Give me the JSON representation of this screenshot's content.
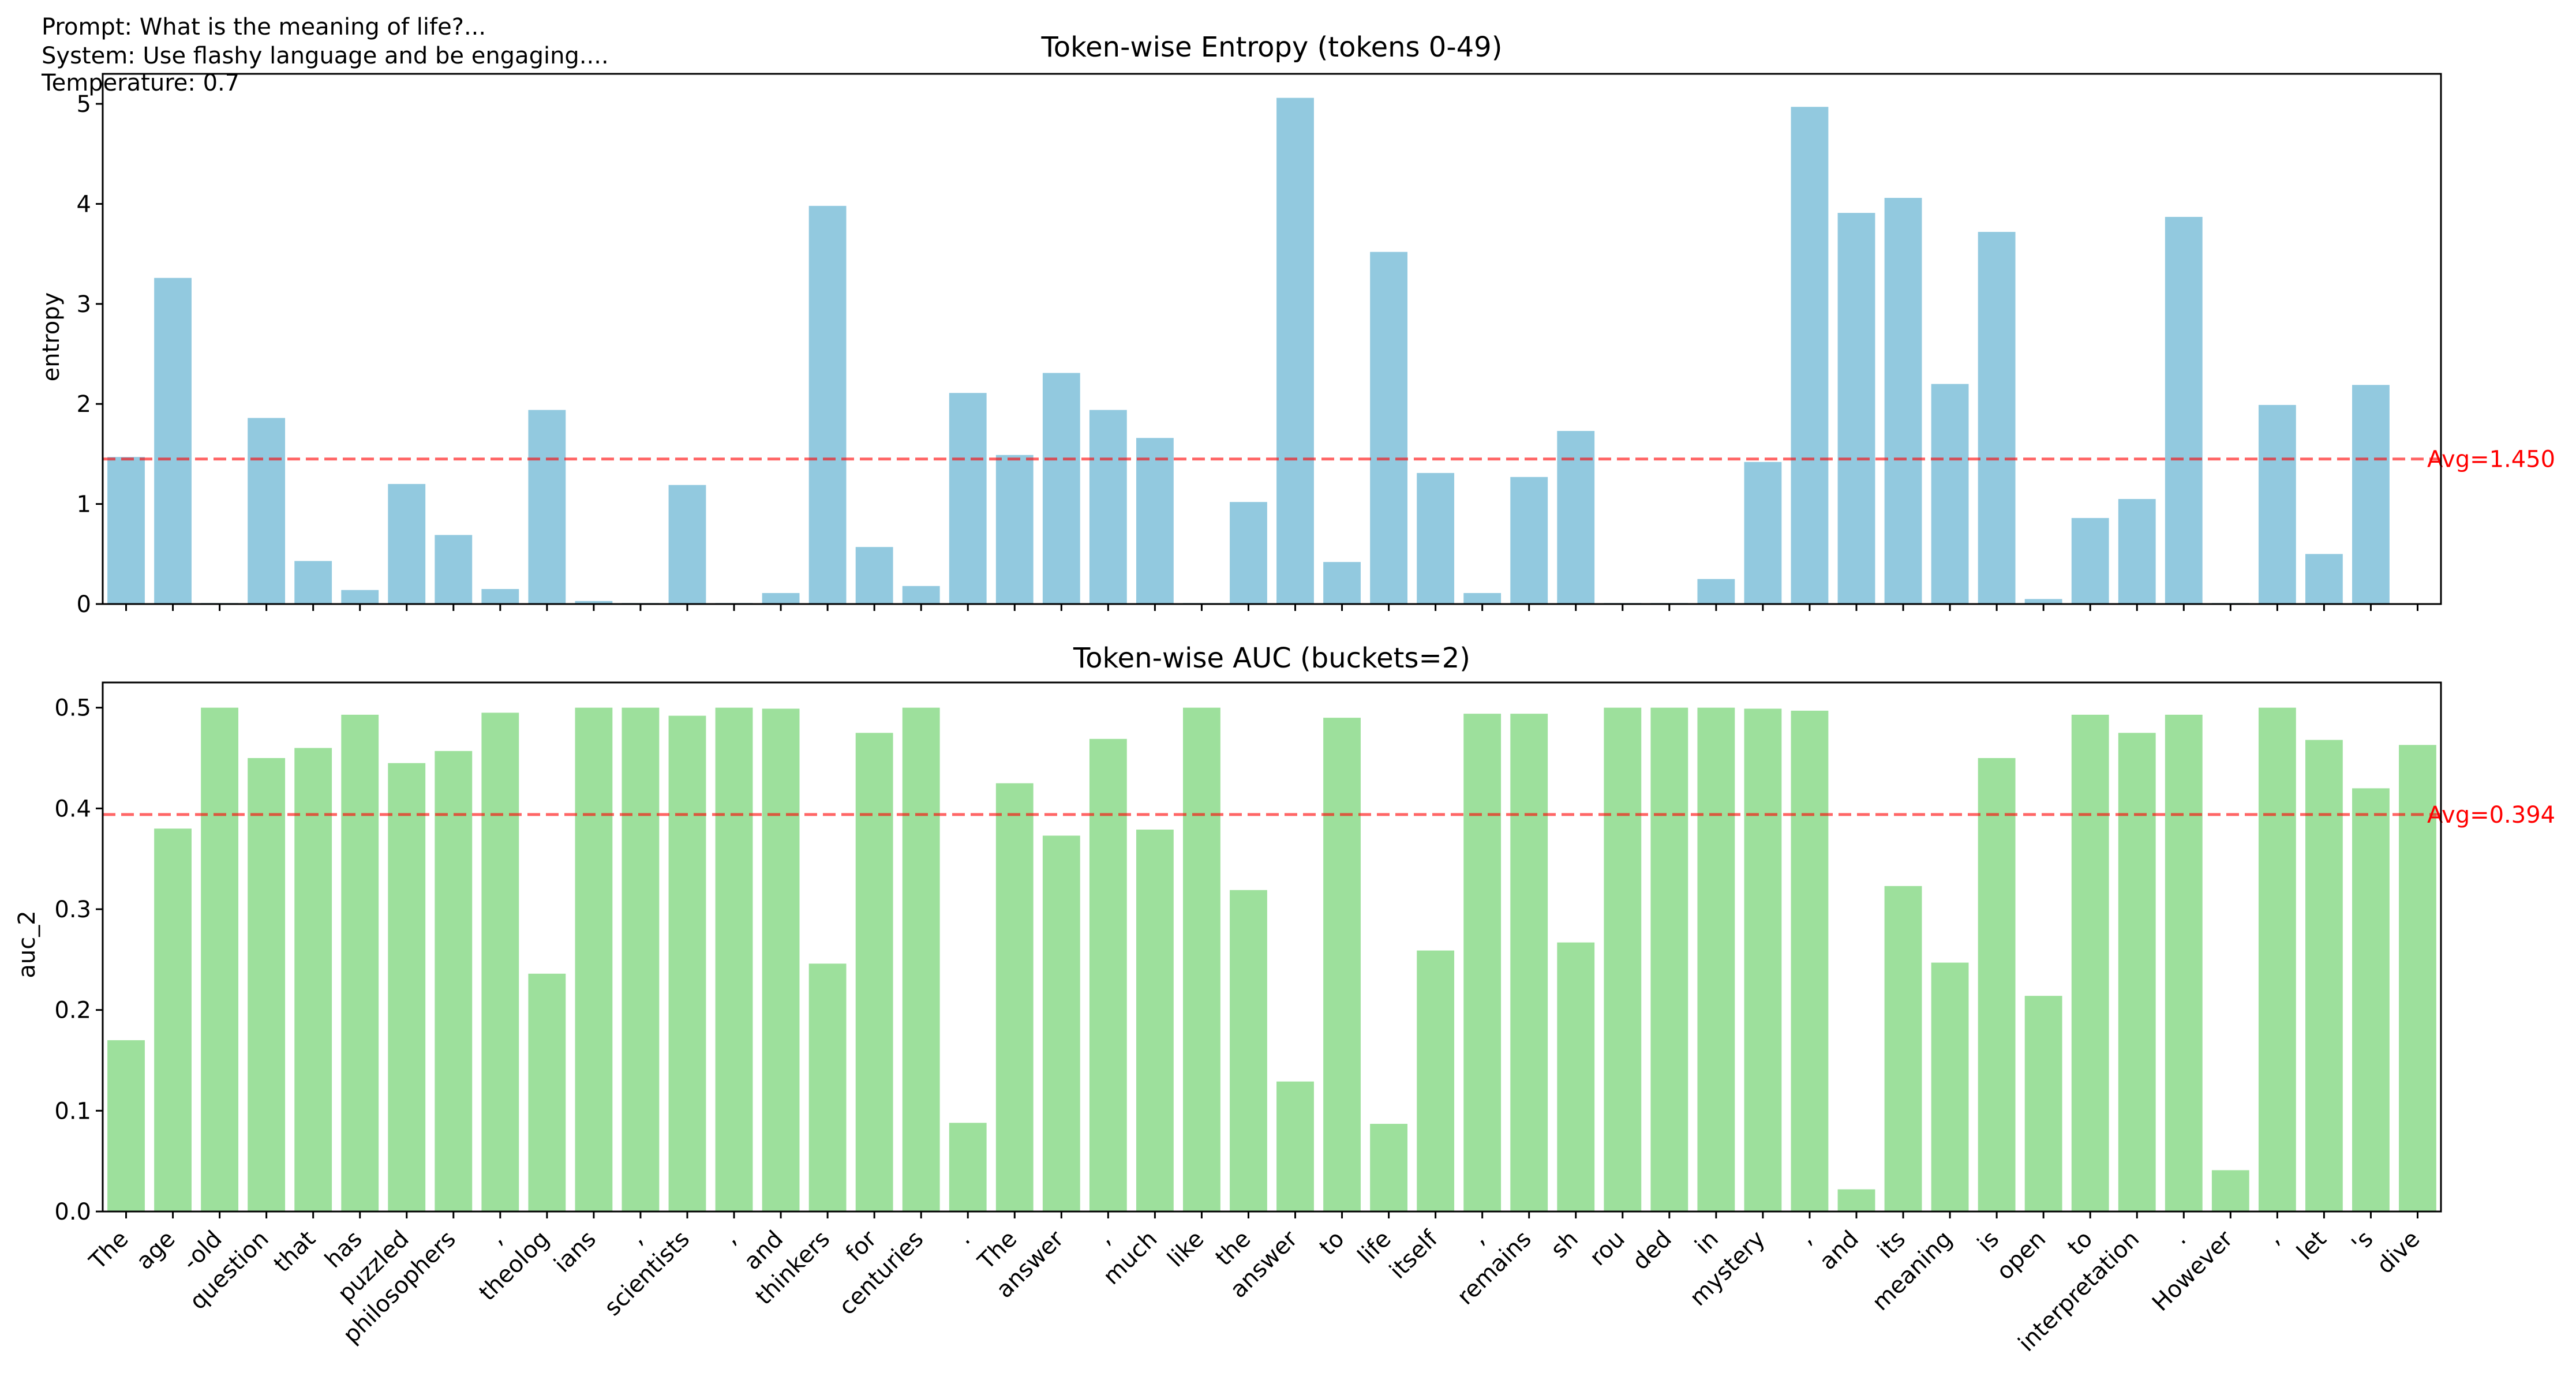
{
  "header_lines": [
    "Prompt: What is the meaning of life?...",
    "System: Use flashy language and be engaging....",
    "Temperature: 0.7"
  ],
  "colors": {
    "entropy_bar": "#92c9df",
    "auc_bar": "#9de09c",
    "avg_line": "#ff0000",
    "axis": "#000000"
  },
  "chart_data": [
    {
      "type": "bar",
      "title": "Token-wise Entropy (tokens 0-49)",
      "ylabel": "entropy",
      "ylim": [
        0,
        5.3
      ],
      "yticks": [
        0,
        1,
        2,
        3,
        4,
        5
      ],
      "ytick_labels": [
        "0",
        "1",
        "2",
        "3",
        "4",
        "5"
      ],
      "categories": [
        "The",
        "age",
        "-old",
        "question",
        "that",
        "has",
        "puzzled",
        "philosophers",
        ",",
        "theolog",
        "ians",
        ",",
        "scientists",
        ",",
        "and",
        "thinkers",
        "for",
        "centuries",
        ".",
        "The",
        "answer",
        ",",
        "much",
        "like",
        "the",
        "answer",
        "to",
        "life",
        "itself",
        ",",
        "remains",
        "sh",
        "rou",
        "ded",
        "in",
        "mystery",
        ",",
        "and",
        "its",
        "meaning",
        "is",
        "open",
        "to",
        "interpretation",
        ".",
        "However",
        ",",
        "let",
        "'s",
        "dive"
      ],
      "values": [
        1.47,
        3.26,
        0.01,
        1.86,
        0.43,
        0.14,
        1.2,
        0.69,
        0.15,
        1.94,
        0.03,
        0.01,
        1.19,
        0.01,
        0.11,
        3.98,
        0.57,
        0.18,
        2.11,
        1.49,
        2.31,
        1.94,
        1.66,
        0.01,
        1.02,
        5.06,
        0.42,
        3.52,
        1.31,
        0.11,
        1.27,
        1.73,
        0.01,
        0.01,
        0.25,
        1.42,
        4.97,
        3.91,
        4.06,
        2.2,
        3.72,
        0.05,
        0.86,
        1.05,
        3.87,
        0.01,
        1.99,
        0.5,
        2.19,
        0.0
      ],
      "avg": 1.45,
      "avg_label": "Avg=1.450",
      "show_xticklabels": false
    },
    {
      "type": "bar",
      "title": "Token-wise AUC (buckets=2)",
      "ylabel": "auc_2",
      "ylim": [
        0,
        0.525
      ],
      "yticks": [
        0,
        0.1,
        0.2,
        0.3,
        0.4,
        0.5
      ],
      "ytick_labels": [
        "0.0",
        "0.1",
        "0.2",
        "0.3",
        "0.4",
        "0.5"
      ],
      "categories": [
        "The",
        "age",
        "-old",
        "question",
        "that",
        "has",
        "puzzled",
        "philosophers",
        ",",
        "theolog",
        "ians",
        ",",
        "scientists",
        ",",
        "and",
        "thinkers",
        "for",
        "centuries",
        ".",
        "The",
        "answer",
        ",",
        "much",
        "like",
        "the",
        "answer",
        "to",
        "life",
        "itself",
        ",",
        "remains",
        "sh",
        "rou",
        "ded",
        "in",
        "mystery",
        ",",
        "and",
        "its",
        "meaning",
        "is",
        "open",
        "to",
        "interpretation",
        ".",
        "However",
        ",",
        "let",
        "'s",
        "dive"
      ],
      "values": [
        0.17,
        0.38,
        0.5,
        0.45,
        0.46,
        0.493,
        0.445,
        0.457,
        0.495,
        0.236,
        0.5,
        0.5,
        0.492,
        0.5,
        0.499,
        0.246,
        0.475,
        0.5,
        0.088,
        0.425,
        0.373,
        0.469,
        0.379,
        0.5,
        0.319,
        0.129,
        0.49,
        0.087,
        0.259,
        0.494,
        0.494,
        0.267,
        0.5,
        0.5,
        0.5,
        0.499,
        0.497,
        0.022,
        0.323,
        0.247,
        0.45,
        0.214,
        0.493,
        0.475,
        0.493,
        0.041,
        0.5,
        0.468,
        0.42,
        0.463
      ],
      "avg": 0.394,
      "avg_label": "Avg=0.394",
      "show_xticklabels": true
    }
  ]
}
